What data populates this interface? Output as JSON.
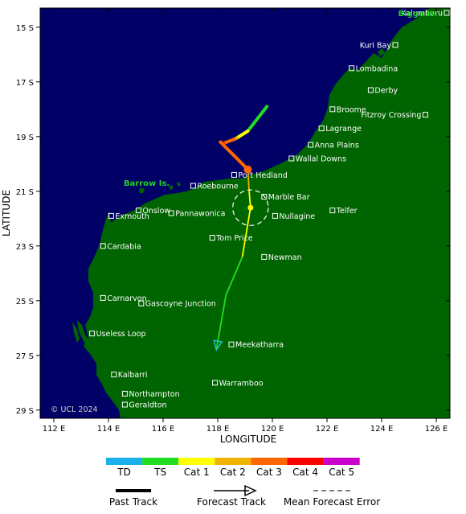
{
  "map": {
    "xlabel": "LONGITUDE",
    "ylabel": "LATITUDE",
    "lon_range": [
      111.5,
      126.5
    ],
    "lat_range": [
      14.3,
      29.3
    ],
    "lon_ticks": [
      "112 E",
      "114 E",
      "116 E",
      "118 E",
      "120 E",
      "122 E",
      "124 E",
      "126 E"
    ],
    "lat_ticks": [
      "15 S",
      "17 S",
      "19 S",
      "21 S",
      "23 S",
      "25 S",
      "27 S",
      "29 S"
    ],
    "copyright": "© UCL 2024",
    "colors": {
      "ocean": "#000066",
      "land": "#006400",
      "past_track_start": "#00cc00",
      "forecast_track": "#33cc33"
    }
  },
  "places": [
    {
      "name": "Kalumburu",
      "lon": 126.6,
      "lat": 14.3
    },
    {
      "name": "Kuri Bay",
      "lon": 124.5,
      "lat": 15.65
    },
    {
      "name": "Lombadina",
      "lon": 122.9,
      "lat": 16.5
    },
    {
      "name": "Derby",
      "lon": 123.6,
      "lat": 17.3
    },
    {
      "name": "Broome",
      "lon": 122.2,
      "lat": 18.0
    },
    {
      "name": "Fitzroy Crossing",
      "lon": 125.6,
      "lat": 18.2
    },
    {
      "name": "Lagrange",
      "lon": 121.8,
      "lat": 18.7
    },
    {
      "name": "Anna Plains",
      "lon": 121.4,
      "lat": 19.3
    },
    {
      "name": "Wallal Downs",
      "lon": 120.7,
      "lat": 19.8
    },
    {
      "name": "Port Hedland",
      "lon": 118.6,
      "lat": 20.4
    },
    {
      "name": "Roebourne",
      "lon": 117.1,
      "lat": 20.8
    },
    {
      "name": "Marble Bar",
      "lon": 119.7,
      "lat": 21.2
    },
    {
      "name": "Onslow",
      "lon": 115.1,
      "lat": 21.7
    },
    {
      "name": "Pannawonica",
      "lon": 116.3,
      "lat": 21.8
    },
    {
      "name": "Exmouth",
      "lon": 114.1,
      "lat": 21.9
    },
    {
      "name": "Nullagine",
      "lon": 120.1,
      "lat": 21.9
    },
    {
      "name": "Telfer",
      "lon": 122.2,
      "lat": 21.7
    },
    {
      "name": "Tom Price",
      "lon": 117.8,
      "lat": 22.7
    },
    {
      "name": "Cardabia",
      "lon": 113.8,
      "lat": 23.0
    },
    {
      "name": "Newman",
      "lon": 119.7,
      "lat": 23.4
    },
    {
      "name": "Carnarvon",
      "lon": 113.8,
      "lat": 24.9
    },
    {
      "name": "Gascoyne Junction",
      "lon": 115.2,
      "lat": 25.1
    },
    {
      "name": "Useless Loop",
      "lon": 113.4,
      "lat": 26.2
    },
    {
      "name": "Meekatharra",
      "lon": 118.5,
      "lat": 26.6
    },
    {
      "name": "Kalbarri",
      "lon": 114.2,
      "lat": 27.7
    },
    {
      "name": "Warramboo",
      "lon": 117.9,
      "lat": 28.0
    },
    {
      "name": "Northampton",
      "lon": 114.6,
      "lat": 28.4
    },
    {
      "name": "Geraldton",
      "lon": 114.6,
      "lat": 28.8
    }
  ],
  "special_labels": [
    {
      "name": "Barrow Is.",
      "lon": 115.4,
      "lat": 20.8
    },
    {
      "name": "Bigge Is.",
      "lon": 125.5,
      "lat": 14.5
    }
  ],
  "track": {
    "past": [
      {
        "lon": 119.8,
        "lat": 17.9,
        "cat": "TS"
      },
      {
        "lon": 119.1,
        "lat": 18.8,
        "cat": "TS"
      },
      {
        "lon": 118.7,
        "lat": 19.05,
        "cat": "Cat 1"
      },
      {
        "lon": 118.6,
        "lat": 19.1,
        "cat": "Cat 2"
      },
      {
        "lon": 118.2,
        "lat": 19.25,
        "cat": "Cat 3"
      },
      {
        "lon": 118.1,
        "lat": 19.2,
        "cat": "Cat 4"
      },
      {
        "lon": 119.1,
        "lat": 20.2,
        "cat": "Cat 3"
      }
    ],
    "current": {
      "lon": 119.1,
      "lat": 20.2,
      "cat": "Cat 3"
    },
    "forecast": [
      {
        "lon": 119.1,
        "lat": 20.2,
        "cat": "Cat 3"
      },
      {
        "lon": 119.15,
        "lat": 21.0,
        "cat": "Cat 2"
      },
      {
        "lon": 119.2,
        "lat": 21.6,
        "cat": "Cat 1"
      },
      {
        "lon": 118.9,
        "lat": 23.4,
        "cat": "Cat 1"
      },
      {
        "lon": 118.3,
        "lat": 24.8,
        "cat": "TS"
      },
      {
        "lon": 117.95,
        "lat": 26.8,
        "cat": "TS"
      }
    ],
    "forecast_point": {
      "lon": 119.2,
      "lat": 21.6,
      "cat": "Cat 1"
    },
    "error_circle": {
      "lon": 119.2,
      "lat": 21.6,
      "radius_deg": 0.65
    }
  },
  "legend": {
    "categories": [
      {
        "label": "TD",
        "color": "#1ab0ec"
      },
      {
        "label": "TS",
        "color": "#22dd22"
      },
      {
        "label": "Cat 1",
        "color": "#ffff00"
      },
      {
        "label": "Cat 2",
        "color": "#f0b400"
      },
      {
        "label": "Cat 3",
        "color": "#ff6600"
      },
      {
        "label": "Cat 4",
        "color": "#ff0000"
      },
      {
        "label": "Cat 5",
        "color": "#cc00cc"
      }
    ],
    "past_track_label": "Past Track",
    "forecast_track_label": "Forecast Track",
    "error_label": "Mean Forecast Error"
  }
}
